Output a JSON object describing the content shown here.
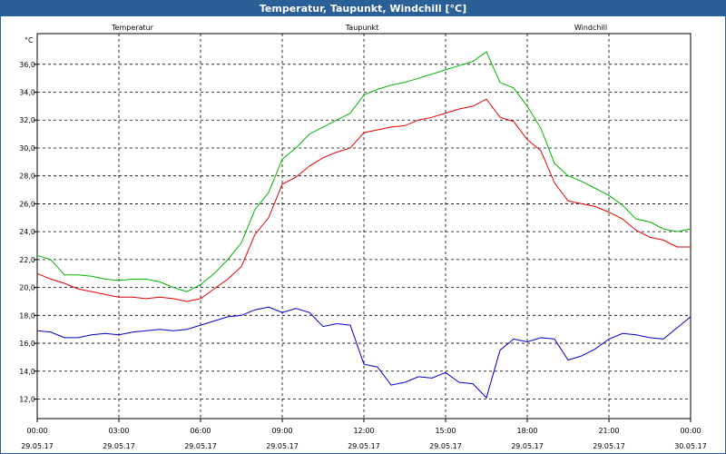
{
  "window": {
    "title": "Temperatur, Taupunkt, Windchill [°C]"
  },
  "colors": {
    "temperatur": "#e00000",
    "taupunkt": "#0000c8",
    "windchill": "#00b400",
    "titlebar": "#2b5f97"
  },
  "chart_data": {
    "type": "line",
    "title": "Temperatur, Taupunkt, Windchill [°C]",
    "ylabel": "°C",
    "ylim": [
      10.6,
      38.2
    ],
    "yticks": [
      "12,0",
      "14,0",
      "16,0",
      "18,0",
      "20,0",
      "22,0",
      "24,0",
      "26,0",
      "28,0",
      "30,0",
      "32,0",
      "34,0",
      "36,0"
    ],
    "xlim": [
      0,
      24
    ],
    "xticks": [
      {
        "time": "00:00",
        "date": "29.05.17"
      },
      {
        "time": "03:00",
        "date": "29.05.17"
      },
      {
        "time": "06:00",
        "date": "29.05.17"
      },
      {
        "time": "09:00",
        "date": "29.05.17"
      },
      {
        "time": "12:00",
        "date": "29.05.17"
      },
      {
        "time": "15:00",
        "date": "29.05.17"
      },
      {
        "time": "18:00",
        "date": "29.05.17"
      },
      {
        "time": "21:00",
        "date": "29.05.17"
      },
      {
        "time": "00:00",
        "date": "30.05.17"
      }
    ],
    "grid": true,
    "series": [
      {
        "name": "Temperatur",
        "color": "#e00000",
        "x": [
          0,
          0.5,
          1,
          1.5,
          2,
          2.5,
          3,
          3.5,
          4,
          4.5,
          5,
          5.5,
          6,
          6.5,
          7,
          7.5,
          8,
          8.5,
          9,
          9.5,
          10,
          10.5,
          11,
          11.5,
          12,
          12.5,
          13,
          13.5,
          14,
          14.5,
          15,
          15.5,
          16,
          16.5,
          17,
          17.5,
          18,
          18.5,
          19,
          19.5,
          20,
          20.5,
          21,
          21.5,
          22,
          22.5,
          23,
          23.5,
          24
        ],
        "values": [
          21.0,
          20.6,
          20.3,
          19.9,
          19.7,
          19.5,
          19.3,
          19.3,
          19.2,
          19.3,
          19.2,
          19.0,
          19.2,
          19.9,
          20.6,
          21.5,
          23.8,
          25.0,
          27.4,
          27.9,
          28.7,
          29.3,
          29.7,
          30.0,
          31.1,
          31.3,
          31.5,
          31.6,
          32.0,
          32.2,
          32.5,
          32.8,
          33.0,
          33.5,
          32.2,
          31.9,
          30.6,
          29.8,
          27.5,
          26.2,
          26.0,
          25.8,
          25.4,
          24.9,
          24.1,
          23.6,
          23.4,
          22.9,
          22.9
        ]
      },
      {
        "name": "Taupunkt",
        "color": "#0000c8",
        "x": [
          0,
          0.5,
          1,
          1.5,
          2,
          2.5,
          3,
          3.5,
          4,
          4.5,
          5,
          5.5,
          6,
          6.5,
          7,
          7.5,
          8,
          8.5,
          9,
          9.5,
          10,
          10.5,
          11,
          11.5,
          12,
          12.5,
          13,
          13.5,
          14,
          14.5,
          15,
          15.5,
          16,
          16.5,
          17,
          17.5,
          18,
          18.5,
          19,
          19.5,
          20,
          20.5,
          21,
          21.5,
          22,
          22.5,
          23,
          23.5,
          24
        ],
        "values": [
          16.9,
          16.8,
          16.4,
          16.4,
          16.6,
          16.7,
          16.6,
          16.8,
          16.9,
          17.0,
          16.9,
          17.0,
          17.3,
          17.6,
          17.9,
          18.0,
          18.4,
          18.6,
          18.2,
          18.5,
          18.2,
          17.2,
          17.4,
          17.3,
          14.5,
          14.3,
          13.0,
          13.2,
          13.6,
          13.5,
          13.9,
          13.2,
          13.1,
          12.1,
          15.5,
          16.3,
          16.1,
          16.4,
          16.3,
          14.8,
          15.1,
          15.6,
          16.3,
          16.7,
          16.6,
          16.4,
          16.3,
          17.1,
          17.9
        ]
      },
      {
        "name": "Windchill",
        "color": "#00b400",
        "x": [
          0,
          0.5,
          1,
          1.5,
          2,
          2.5,
          3,
          3.5,
          4,
          4.5,
          5,
          5.5,
          6,
          6.5,
          7,
          7.5,
          8,
          8.5,
          9,
          9.5,
          10,
          10.5,
          11,
          11.5,
          12,
          12.5,
          13,
          13.5,
          14,
          14.5,
          15,
          15.5,
          16,
          16.5,
          17,
          17.5,
          18,
          18.5,
          19,
          19.5,
          20,
          20.5,
          21,
          21.5,
          22,
          22.5,
          23,
          23.5,
          24
        ],
        "values": [
          22.3,
          22.0,
          20.9,
          20.9,
          20.8,
          20.6,
          20.5,
          20.6,
          20.6,
          20.4,
          20.0,
          19.7,
          20.2,
          21.0,
          22.0,
          23.2,
          25.6,
          26.8,
          29.2,
          30.0,
          31.0,
          31.5,
          32.0,
          32.5,
          33.8,
          34.2,
          34.5,
          34.7,
          35.0,
          35.3,
          35.6,
          35.9,
          36.2,
          36.9,
          34.7,
          34.3,
          33.0,
          31.4,
          28.9,
          28.0,
          27.6,
          27.1,
          26.6,
          25.9,
          24.9,
          24.7,
          24.2,
          24.0,
          24.2
        ]
      }
    ]
  }
}
